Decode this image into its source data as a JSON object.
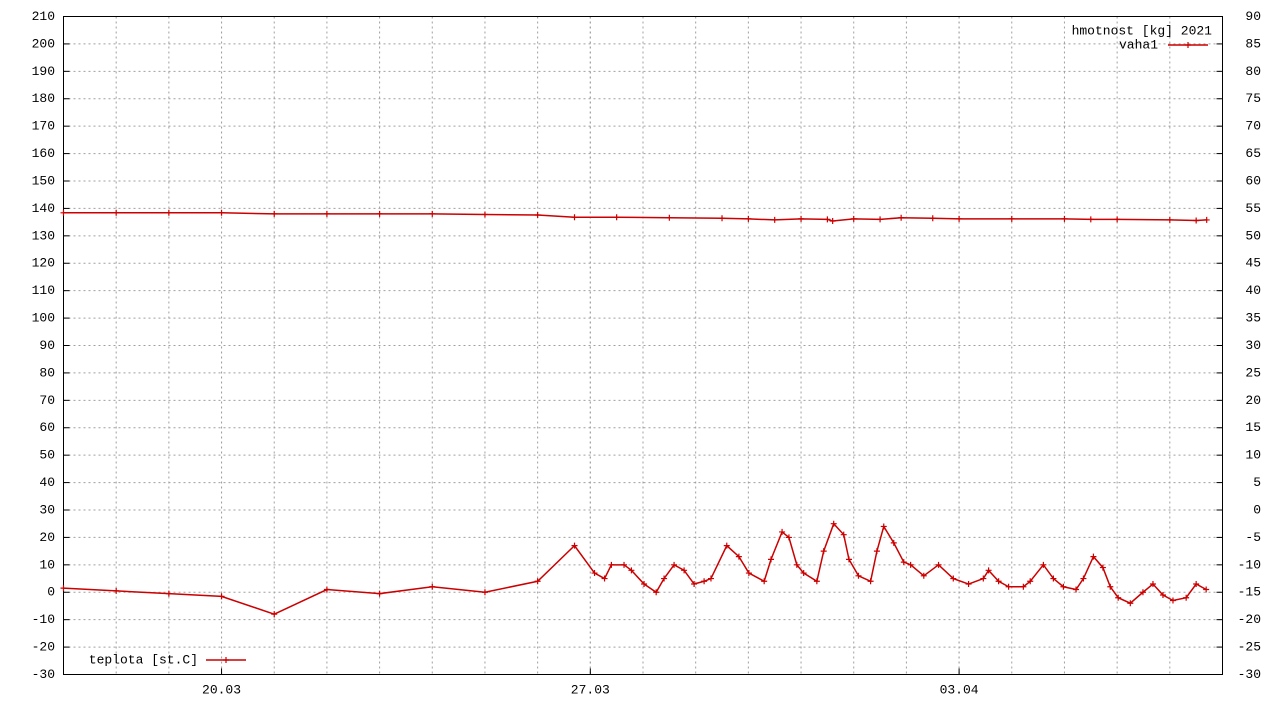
{
  "chart_data": {
    "type": "line",
    "legend_title": "hmotnost [kg] 2021",
    "xlim": [
      17,
      39
    ],
    "xticks": [
      {
        "value": 20,
        "label": "20.03"
      },
      {
        "value": 27,
        "label": "27.03"
      },
      {
        "value": 34,
        "label": "03.04"
      }
    ],
    "x_minor_step": 1,
    "ylim": [
      -30,
      210
    ],
    "yticks": [
      -30,
      -20,
      -10,
      0,
      10,
      20,
      30,
      40,
      50,
      60,
      70,
      80,
      90,
      100,
      110,
      120,
      130,
      140,
      150,
      160,
      170,
      180,
      190,
      200,
      210
    ],
    "y2lim": [
      -30,
      90
    ],
    "y2ticks": [
      -30,
      -25,
      -20,
      -15,
      -10,
      -5,
      0,
      5,
      10,
      15,
      20,
      25,
      30,
      35,
      40,
      45,
      50,
      55,
      60,
      65,
      70,
      75,
      80,
      85,
      90
    ],
    "grid": true,
    "series": [
      {
        "name": "vaha1",
        "color": "#cc0000",
        "axis": "y2",
        "legend": "top right",
        "x": [
          17,
          18,
          19,
          20,
          21,
          22,
          23,
          24,
          25,
          26,
          26.7,
          27.5,
          28.5,
          29.5,
          30,
          30.5,
          31,
          31.5,
          31.6,
          32,
          32.5,
          32.9,
          33.5,
          34,
          35,
          36,
          36.5,
          37,
          38,
          38.5,
          38.7
        ],
        "values": [
          54.2,
          54.2,
          54.2,
          54.2,
          54.0,
          54.0,
          54.0,
          54.0,
          53.9,
          53.8,
          53.4,
          53.4,
          53.3,
          53.2,
          53.1,
          52.9,
          53.1,
          53.0,
          52.7,
          53.1,
          53.0,
          53.3,
          53.2,
          53.1,
          53.1,
          53.1,
          53.0,
          53.0,
          52.9,
          52.8,
          52.9
        ]
      },
      {
        "name": "teplota [st.C]",
        "color": "#cc0000",
        "axis": "y",
        "legend": "bottom left",
        "x": [
          17,
          18,
          19,
          20,
          21,
          22,
          23,
          24,
          25,
          26,
          26.7,
          27.08,
          27.27,
          27.4,
          27.64,
          27.78,
          28.02,
          28.25,
          28.4,
          28.59,
          28.78,
          28.97,
          29.16,
          29.29,
          29.59,
          29.82,
          30.01,
          30.3,
          30.43,
          30.64,
          30.77,
          30.92,
          31.05,
          31.3,
          31.43,
          31.62,
          31.81,
          31.91,
          32.09,
          32.32,
          32.44,
          32.57,
          32.76,
          32.95,
          33.08,
          33.33,
          33.61,
          33.89,
          34.18,
          34.46,
          34.56,
          34.75,
          34.94,
          35.22,
          35.35,
          35.6,
          35.79,
          35.98,
          36.22,
          36.36,
          36.55,
          36.73,
          36.87,
          37.02,
          37.25,
          37.49,
          37.68,
          37.87,
          38.06,
          38.31,
          38.5,
          38.69
        ],
        "values": [
          1.5,
          0.5,
          -0.5,
          -1.5,
          -8,
          1,
          -0.5,
          2,
          0,
          4,
          17,
          7,
          5,
          10,
          10,
          8,
          3,
          0,
          5,
          10,
          8,
          3,
          4,
          5,
          17,
          13,
          7,
          4,
          12,
          22,
          20,
          10,
          7,
          4,
          15,
          25,
          21,
          12,
          6,
          4,
          15,
          24,
          18,
          11,
          10,
          6,
          10,
          5,
          3,
          5,
          8,
          4,
          2,
          2,
          4,
          10,
          5,
          2,
          1,
          5,
          13,
          9,
          2,
          -2,
          -4,
          0,
          3,
          -1,
          -3,
          -2,
          3,
          1
        ]
      }
    ]
  }
}
